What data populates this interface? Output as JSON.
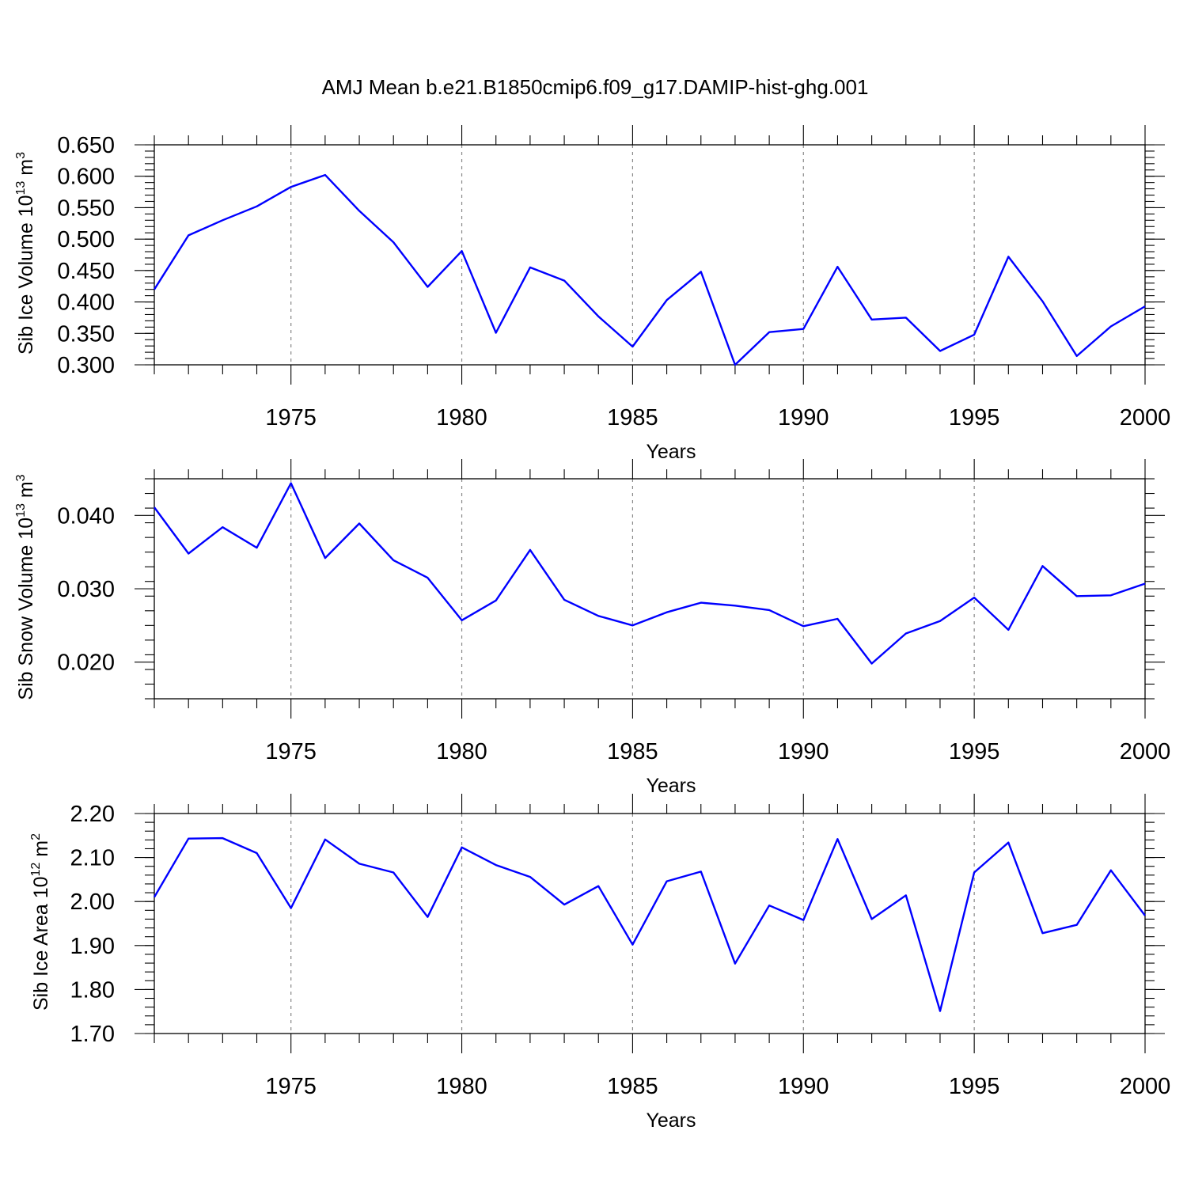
{
  "chart_data": {
    "title": "AMJ Mean b.e21.B1850cmip6.f09_g17.DAMIP-hist-ghg.001",
    "panels": [
      {
        "type": "line",
        "ylabel": "Sib Ice Volume 10",
        "ylabel_exp": "13",
        "ylabel_unit": " m",
        "ylabel_unit_exp": "3",
        "xlabel": "Years",
        "xlim": [
          1971,
          2000
        ],
        "ylim": [
          0.3,
          0.65
        ],
        "yticks": [
          0.3,
          0.35,
          0.4,
          0.45,
          0.5,
          0.55,
          0.6,
          0.65
        ],
        "yticklabels": [
          "0.300",
          "0.350",
          "0.400",
          "0.450",
          "0.500",
          "0.550",
          "0.600",
          "0.650"
        ],
        "yminor": 0.01,
        "xticks": [
          1975,
          1980,
          1985,
          1990,
          1995,
          2000
        ],
        "xticklabels": [
          "1975",
          "1980",
          "1985",
          "1990",
          "1995",
          "2000"
        ],
        "grid_x": true,
        "series": [
          {
            "name": "Sib Ice Volume",
            "color": "#0000ff",
            "x": [
              1971,
              1972,
              1973,
              1974,
              1975,
              1976,
              1977,
              1978,
              1979,
              1980,
              1981,
              1982,
              1983,
              1984,
              1985,
              1986,
              1987,
              1988,
              1989,
              1990,
              1991,
              1992,
              1993,
              1994,
              1995,
              1996,
              1997,
              1998,
              1999,
              2000
            ],
            "values": [
              0.42,
              0.506,
              0.53,
              0.552,
              0.583,
              0.602,
              0.545,
              0.495,
              0.424,
              0.481,
              0.351,
              0.455,
              0.434,
              0.377,
              0.329,
              0.403,
              0.448,
              0.3,
              0.352,
              0.357,
              0.456,
              0.372,
              0.375,
              0.322,
              0.348,
              0.472,
              0.401,
              0.314,
              0.361,
              0.393
            ]
          }
        ]
      },
      {
        "type": "line",
        "ylabel": "Sib Snow Volume 10",
        "ylabel_exp": "13",
        "ylabel_unit": " m",
        "ylabel_unit_exp": "3",
        "xlabel": "Years",
        "xlim": [
          1971,
          2000
        ],
        "ylim": [
          0.015,
          0.045
        ],
        "yticks": [
          0.02,
          0.03,
          0.04
        ],
        "yticklabels": [
          "0.020",
          "0.030",
          "0.040"
        ],
        "yminor": 0.002,
        "xticks": [
          1975,
          1980,
          1985,
          1990,
          1995,
          2000
        ],
        "xticklabels": [
          "1975",
          "1980",
          "1985",
          "1990",
          "1995",
          "2000"
        ],
        "grid_x": true,
        "series": [
          {
            "name": "Sib Snow Volume",
            "color": "#0000ff",
            "x": [
              1971,
              1972,
              1973,
              1974,
              1975,
              1976,
              1977,
              1978,
              1979,
              1980,
              1981,
              1982,
              1983,
              1984,
              1985,
              1986,
              1987,
              1988,
              1989,
              1990,
              1991,
              1992,
              1993,
              1994,
              1995,
              1996,
              1997,
              1998,
              1999,
              2000
            ],
            "values": [
              0.0411,
              0.0348,
              0.0384,
              0.0356,
              0.0444,
              0.0342,
              0.0389,
              0.0339,
              0.0315,
              0.0257,
              0.0284,
              0.0353,
              0.0285,
              0.0263,
              0.025,
              0.0268,
              0.0281,
              0.0277,
              0.0271,
              0.0249,
              0.0259,
              0.0198,
              0.0239,
              0.0256,
              0.0288,
              0.0244,
              0.0331,
              0.029,
              0.0291,
              0.0307
            ]
          }
        ]
      },
      {
        "type": "line",
        "ylabel": "Sib Ice Area 10",
        "ylabel_exp": "12",
        "ylabel_unit": " m",
        "ylabel_unit_exp": "2",
        "xlabel": "Years",
        "xlim": [
          1971,
          2000
        ],
        "ylim": [
          1.7,
          2.2
        ],
        "yticks": [
          1.7,
          1.8,
          1.9,
          2.0,
          2.1,
          2.2
        ],
        "yticklabels": [
          "1.70",
          "1.80",
          "1.90",
          "2.00",
          "2.10",
          "2.20"
        ],
        "yminor": 0.02,
        "xticks": [
          1975,
          1980,
          1985,
          1990,
          1995,
          2000
        ],
        "xticklabels": [
          "1975",
          "1980",
          "1985",
          "1990",
          "1995",
          "2000"
        ],
        "grid_x": true,
        "series": [
          {
            "name": "Sib Ice Area",
            "color": "#0000ff",
            "x": [
              1971,
              1972,
              1973,
              1974,
              1975,
              1976,
              1977,
              1978,
              1979,
              1980,
              1981,
              1982,
              1983,
              1984,
              1985,
              1986,
              1987,
              1988,
              1989,
              1990,
              1991,
              1992,
              1993,
              1994,
              1995,
              1996,
              1997,
              1998,
              1999,
              2000
            ],
            "values": [
              2.01,
              2.143,
              2.144,
              2.11,
              1.985,
              2.141,
              2.086,
              2.066,
              1.965,
              2.123,
              2.083,
              2.056,
              1.993,
              2.035,
              1.902,
              2.046,
              2.068,
              1.859,
              1.991,
              1.958,
              2.142,
              1.96,
              2.014,
              1.751,
              2.066,
              2.134,
              1.928,
              1.947,
              2.071,
              1.968
            ]
          }
        ]
      }
    ]
  }
}
